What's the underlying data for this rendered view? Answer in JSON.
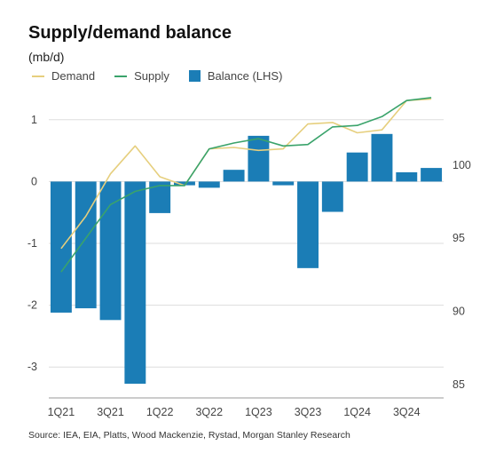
{
  "colors": {
    "demand": "#e6cf7e",
    "supply": "#3aa36b",
    "balance": "#1b7db6",
    "grid": "#dddddd"
  },
  "source": "Source: IEA, EIA, Platts, Wood Mackenzie, Rystad, Morgan Stanley Research",
  "chart_data": {
    "type": "bar",
    "title": "Supply/demand balance",
    "subtitle": "(mb/d)",
    "categories": [
      "1Q21",
      "2Q21",
      "3Q21",
      "4Q21",
      "1Q22",
      "2Q22",
      "3Q22",
      "4Q22",
      "1Q23",
      "2Q23",
      "3Q23",
      "4Q23",
      "1Q24",
      "2Q24",
      "3Q24",
      "4Q24"
    ],
    "x_tick_labels": [
      "1Q21",
      "3Q21",
      "1Q22",
      "3Q22",
      "1Q23",
      "3Q23",
      "1Q24",
      "3Q24"
    ],
    "legend": {
      "demand": "Demand",
      "supply": "Supply",
      "balance": "Balance (LHS)"
    },
    "series": [
      {
        "name": "Balance (LHS)",
        "type": "bar",
        "axis": "left",
        "values": [
          -2.12,
          -2.05,
          -2.24,
          -3.27,
          -0.51,
          -0.06,
          -0.1,
          0.19,
          0.74,
          -0.06,
          -1.4,
          -0.49,
          0.47,
          0.77,
          0.15,
          0.22
        ]
      },
      {
        "name": "Demand",
        "type": "line",
        "axis": "right",
        "values": [
          94.3,
          96.5,
          99.4,
          101.3,
          99.2,
          98.6,
          101.1,
          101.2,
          101.0,
          101.1,
          102.8,
          102.9,
          102.2,
          102.4,
          104.4,
          104.5
        ]
      },
      {
        "name": "Supply",
        "type": "line",
        "axis": "right",
        "values": [
          92.7,
          95.0,
          97.3,
          98.2,
          98.6,
          98.6,
          101.1,
          101.5,
          101.8,
          101.3,
          101.4,
          102.6,
          102.7,
          103.3,
          104.4,
          104.6
        ]
      }
    ],
    "y_left": {
      "ticks": [
        "1",
        "0",
        "-1",
        "-2",
        "-3"
      ],
      "ylim": [
        -3.5,
        1.5
      ]
    },
    "y_right": {
      "ticks": [
        "100",
        "95",
        "90",
        "85"
      ],
      "ylim": [
        84.1,
        105.2
      ]
    },
    "grid": true,
    "legend_position": "top-left"
  }
}
